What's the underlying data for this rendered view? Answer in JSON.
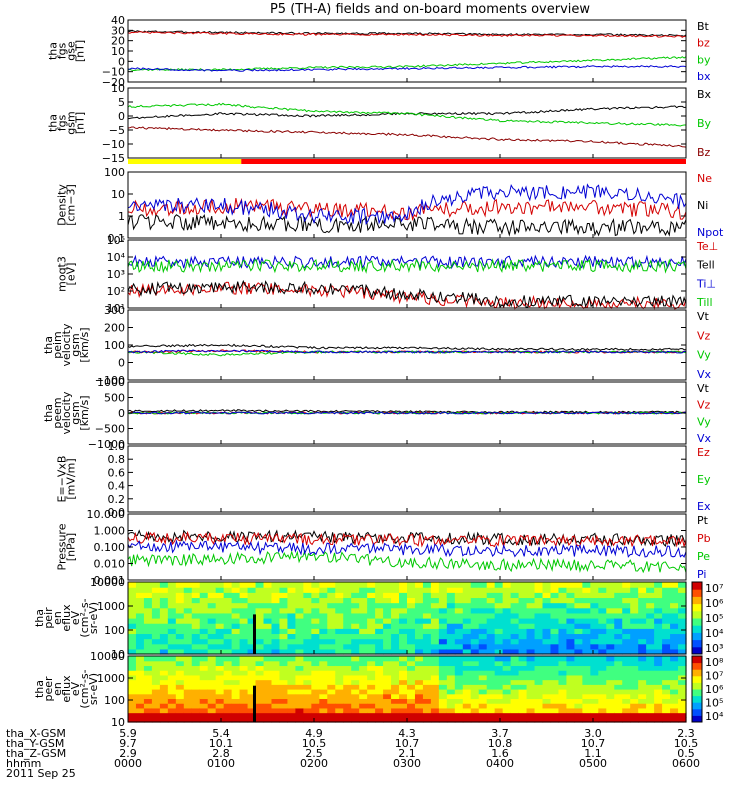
{
  "title": "P5 (TH-A) fields and on-board moments overview",
  "chart_data": {
    "type": "line",
    "title": "P5 (TH-A) fields and on-board moments overview",
    "x_ticks": [
      "0000",
      "0100",
      "0200",
      "0300",
      "0400",
      "0500",
      "0600"
    ],
    "x_label": "hhmm",
    "date": "2011 Sep 25",
    "status_bar": {
      "yellow_until": "0115",
      "red_from": "0115"
    },
    "panels": [
      {
        "id": "fgs-gse",
        "ylabel": [
          "tha",
          "fgs",
          "gse",
          "[nT]"
        ],
        "scale": "linear",
        "ylim": [
          -20,
          40
        ],
        "yticks": [
          "40",
          "30",
          "20",
          "10",
          "0",
          "−10",
          "−20"
        ],
        "series": [
          {
            "name": "Bt",
            "color": "#000000",
            "kind": "line",
            "values": [
              29,
              28,
              27,
              27,
              26,
              26,
              25
            ]
          },
          {
            "name": "bz",
            "color": "#d40000",
            "kind": "line",
            "values": [
              28,
              27,
              26,
              26,
              25,
              25,
              24
            ]
          },
          {
            "name": "by",
            "color": "#00c800",
            "kind": "line",
            "values": [
              -8,
              -8,
              -6,
              -5,
              -2,
              1,
              4
            ]
          },
          {
            "name": "bx",
            "color": "#0000d4",
            "kind": "line",
            "values": [
              -7,
              -9,
              -8,
              -7,
              -6,
              -5,
              -5
            ]
          }
        ]
      },
      {
        "id": "fgs-gsm",
        "ylabel": [
          "tha",
          "fgs",
          "gsm",
          "[nT]"
        ],
        "scale": "linear",
        "ylim": [
          -20,
          10
        ],
        "yticks": [
          "10",
          "5",
          "0",
          "−5",
          "−10",
          "−15"
        ],
        "series": [
          {
            "name": "Bx",
            "color": "#000000",
            "kind": "line",
            "values": [
              -3,
              -1,
              -2,
              -1,
              -1,
              1,
              2
            ]
          },
          {
            "name": "By",
            "color": "#00c800",
            "kind": "line",
            "values": [
              2,
              3,
              0,
              -1,
              -4,
              -5,
              -6
            ]
          },
          {
            "name": "Bz",
            "color": "#8b0000",
            "kind": "line",
            "values": [
              -7,
              -8,
              -9,
              -10,
              -12,
              -13,
              -15
            ]
          }
        ]
      },
      {
        "id": "density",
        "ylabel": [
          "Density",
          "[cm−3]"
        ],
        "scale": "log",
        "ylim": [
          0.1,
          100
        ],
        "yticks": [
          "100",
          "10",
          "1",
          "0.1"
        ],
        "series": [
          {
            "name": "Ne",
            "color": "#d40000",
            "kind": "line",
            "values": [
              2,
              3,
              2,
              1.5,
              2.5,
              2.5,
              1.5
            ]
          },
          {
            "name": "Ni",
            "color": "#000000",
            "kind": "line",
            "values": [
              0.5,
              0.5,
              0.4,
              0.4,
              0.3,
              0.3,
              0.3
            ]
          },
          {
            "name": "Npot",
            "color": "#0000d4",
            "kind": "line",
            "values": [
              3,
              3,
              1,
              1,
              12,
              12,
              4
            ]
          }
        ]
      },
      {
        "id": "temperature",
        "ylabel": [
          "moqt3",
          "[eV]"
        ],
        "scale": "log",
        "ylim": [
          10,
          100000
        ],
        "yticks": [
          "10⁵",
          "10⁴",
          "10³",
          "10²",
          "10¹"
        ],
        "series": [
          {
            "name": "Te⊥",
            "color": "#d40000",
            "kind": "line",
            "values": [
              100,
              150,
              120,
              40,
              20,
              20,
              20
            ]
          },
          {
            "name": "Tell",
            "color": "#000000",
            "kind": "line",
            "values": [
              120,
              180,
              150,
              60,
              25,
              25,
              25
            ]
          },
          {
            "name": "Ti⊥",
            "color": "#0000d4",
            "kind": "line",
            "values": [
              5000,
              5000,
              5000,
              5000,
              5000,
              5000,
              5000
            ]
          },
          {
            "name": "Till",
            "color": "#00c800",
            "kind": "line",
            "values": [
              3000,
              3000,
              3000,
              3000,
              3000,
              3000,
              3000
            ]
          }
        ]
      },
      {
        "id": "peim-velocity",
        "ylabel": [
          "tha",
          "peim",
          "velocity",
          "gsm",
          "[km/s]"
        ],
        "scale": "linear",
        "ylim": [
          -200,
          300
        ],
        "yticks": [
          "300",
          "200",
          "100",
          "0",
          "−100"
        ],
        "series": [
          {
            "name": "Vt",
            "color": "#000000",
            "kind": "line",
            "values": [
              40,
              50,
              30,
              30,
              20,
              20,
              20
            ]
          },
          {
            "name": "Vz",
            "color": "#d40000",
            "kind": "line",
            "values": [
              0,
              10,
              0,
              0,
              0,
              0,
              0
            ]
          },
          {
            "name": "Vy",
            "color": "#00c800",
            "kind": "line",
            "values": [
              0,
              -20,
              0,
              0,
              0,
              0,
              0
            ]
          },
          {
            "name": "Vx",
            "color": "#0000d4",
            "kind": "line",
            "values": [
              0,
              10,
              0,
              0,
              0,
              0,
              0
            ]
          }
        ]
      },
      {
        "id": "peem-velocity",
        "ylabel": [
          "tha",
          "peem",
          "velocity",
          "gsm",
          "[km/s]"
        ],
        "scale": "linear",
        "ylim": [
          -1000,
          1000
        ],
        "yticks": [
          "1000",
          "500",
          "0",
          "−500",
          "−1000"
        ],
        "series": [
          {
            "name": "Vt",
            "color": "#000000",
            "kind": "line",
            "values": [
              60,
              80,
              60,
              50,
              30,
              30,
              30
            ]
          },
          {
            "name": "Vz",
            "color": "#d40000",
            "kind": "line",
            "values": [
              0,
              0,
              0,
              0,
              0,
              0,
              0
            ]
          },
          {
            "name": "Vy",
            "color": "#00c800",
            "kind": "line",
            "values": [
              0,
              0,
              0,
              0,
              0,
              0,
              0
            ]
          },
          {
            "name": "Vx",
            "color": "#0000d4",
            "kind": "line",
            "values": [
              0,
              0,
              0,
              0,
              0,
              0,
              0
            ]
          }
        ]
      },
      {
        "id": "e-field",
        "ylabel": [
          "E=−VxB",
          "[mV/m]"
        ],
        "scale": "linear",
        "ylim": [
          0,
          1
        ],
        "yticks": [
          "1.0",
          "0.8",
          "0.6",
          "0.4",
          "0.2",
          "0.0"
        ],
        "series": [
          {
            "name": "Ez",
            "color": "#d40000",
            "kind": "legend"
          },
          {
            "name": "Ey",
            "color": "#00c800",
            "kind": "legend"
          },
          {
            "name": "Ex",
            "color": "#0000d4",
            "kind": "legend"
          }
        ]
      },
      {
        "id": "pressure",
        "ylabel": [
          "Pressure",
          "[nPa]"
        ],
        "scale": "log",
        "ylim": [
          0.001,
          10
        ],
        "yticks": [
          "10.000",
          "1.000",
          "0.100",
          "0.010",
          "0.001"
        ],
        "series": [
          {
            "name": "Pt",
            "color": "#000000",
            "kind": "line",
            "values": [
              0.5,
              0.45,
              0.4,
              0.35,
              0.3,
              0.3,
              0.25
            ]
          },
          {
            "name": "Pb",
            "color": "#d40000",
            "kind": "line",
            "values": [
              0.35,
              0.32,
              0.28,
              0.27,
              0.24,
              0.25,
              0.24
            ]
          },
          {
            "name": "Pe",
            "color": "#00c800",
            "kind": "line",
            "values": [
              0.015,
              0.02,
              0.025,
              0.012,
              0.008,
              0.008,
              0.006
            ]
          },
          {
            "name": "Pi",
            "color": "#0000d4",
            "kind": "line",
            "values": [
              0.12,
              0.1,
              0.08,
              0.07,
              0.06,
              0.06,
              0.05
            ]
          }
        ]
      },
      {
        "id": "peir-spectrogram",
        "ylabel": [
          "tha",
          "peir",
          "en",
          "eflux",
          "eV",
          "(cm²-s-",
          "sr-eV)"
        ],
        "scale": "log",
        "ylim": [
          10,
          10000
        ],
        "yticks": [
          "10000",
          "1000",
          "100",
          "10"
        ],
        "series": [],
        "colorbar": {
          "ticks": [
            "10⁷",
            "10⁶",
            "10⁵",
            "10⁴",
            "10³"
          ],
          "range": [
            1000,
            10000000
          ]
        }
      },
      {
        "id": "peer-spectrogram",
        "ylabel": [
          "tha",
          "peer",
          "en",
          "eflux",
          "eV",
          "(cm²-s-",
          "sr-eV)"
        ],
        "scale": "log",
        "ylim": [
          10,
          10000
        ],
        "yticks": [
          "10000",
          "1000",
          "100",
          "10"
        ],
        "series": [],
        "colorbar": {
          "ticks": [
            "10⁸",
            "10⁷",
            "10⁶",
            "10⁵",
            "10⁴"
          ],
          "range": [
            10000,
            100000000
          ]
        }
      }
    ],
    "ephemeris": {
      "rows": [
        {
          "label": "tha_X-GSM",
          "values": [
            "5.9",
            "5.4",
            "4.9",
            "4.3",
            "3.7",
            "3.0",
            "2.3"
          ]
        },
        {
          "label": "tha_Y-GSM",
          "values": [
            "9.7",
            "10.1",
            "10.5",
            "10.7",
            "10.8",
            "10.7",
            "10.5"
          ]
        },
        {
          "label": "tha_Z-GSM",
          "values": [
            "2.9",
            "2.8",
            "2.5",
            "2.1",
            "1.6",
            "1.1",
            "0.5"
          ]
        },
        {
          "label": "hhmm",
          "values": [
            "0000",
            "0100",
            "0200",
            "0300",
            "0400",
            "0500",
            "0600"
          ]
        }
      ],
      "date": "2011 Sep 25"
    }
  }
}
